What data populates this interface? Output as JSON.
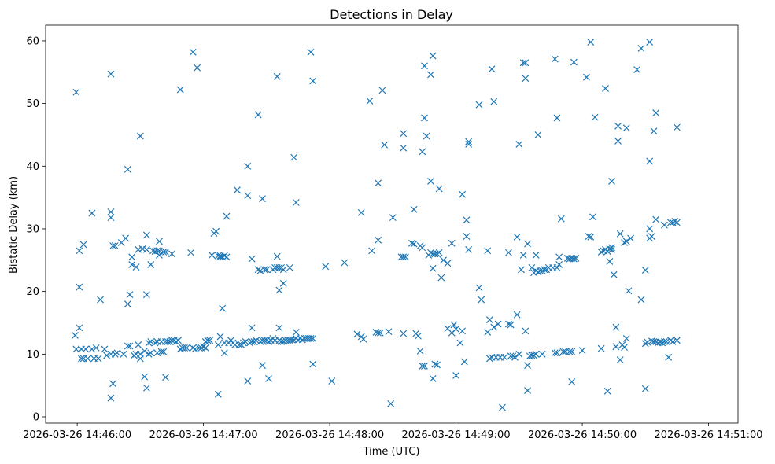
{
  "chart_data": {
    "type": "scatter",
    "title": "Detections in Delay",
    "xlabel": "Time (UTC)",
    "ylabel": "Bistatic Delay (km)",
    "x_ticks": [
      {
        "t": 0,
        "label": "2026-03-26 14:46:00"
      },
      {
        "t": 60,
        "label": "2026-03-26 14:47:00"
      },
      {
        "t": 120,
        "label": "2026-03-26 14:48:00"
      },
      {
        "t": 180,
        "label": "2026-03-26 14:49:00"
      },
      {
        "t": 240,
        "label": "2026-03-26 14:50:00"
      },
      {
        "t": 300,
        "label": "2026-03-26 14:51:00"
      }
    ],
    "y_ticks": [
      0,
      10,
      20,
      30,
      40,
      50,
      60
    ],
    "xlim": [
      -15,
      314
    ],
    "ylim": [
      -1,
      62.5
    ],
    "marker": "x",
    "color": "#1f77b4",
    "points": [
      [
        -0.5,
        51.8
      ],
      [
        -1,
        13
      ],
      [
        -0.5,
        10.8
      ],
      [
        1,
        14.2
      ],
      [
        1,
        26.5
      ],
      [
        1,
        20.7
      ],
      [
        3,
        27.5
      ],
      [
        2,
        10.8
      ],
      [
        2,
        9.3
      ],
      [
        3,
        9.3
      ],
      [
        4,
        10.8
      ],
      [
        5,
        9.3
      ],
      [
        7,
        32.5
      ],
      [
        7,
        10.8
      ],
      [
        8,
        9.3
      ],
      [
        9,
        11
      ],
      [
        10,
        9.3
      ],
      [
        11,
        18.7
      ],
      [
        13,
        10.8
      ],
      [
        14,
        9.8
      ],
      [
        16,
        54.7
      ],
      [
        16,
        32.7
      ],
      [
        16,
        31.8
      ],
      [
        16,
        10
      ],
      [
        17,
        27.3
      ],
      [
        17,
        5.3
      ],
      [
        16,
        3
      ],
      [
        18,
        27.3
      ],
      [
        18,
        10
      ],
      [
        19,
        10.2
      ],
      [
        21,
        27.8
      ],
      [
        22,
        10
      ],
      [
        23,
        28.5
      ],
      [
        24,
        11.3
      ],
      [
        24,
        18
      ],
      [
        24,
        39.5
      ],
      [
        25,
        11.3
      ],
      [
        25,
        19.5
      ],
      [
        26,
        25.5
      ],
      [
        26,
        24.3
      ],
      [
        27,
        9.8
      ],
      [
        28,
        10
      ],
      [
        28,
        23.9
      ],
      [
        29,
        26.7
      ],
      [
        29,
        11.5
      ],
      [
        30,
        10
      ],
      [
        30,
        9.3
      ],
      [
        30,
        44.8
      ],
      [
        31,
        26.8
      ],
      [
        32,
        10.5
      ],
      [
        32,
        6.4
      ],
      [
        33,
        4.6
      ],
      [
        33,
        29
      ],
      [
        33,
        19.5
      ],
      [
        33,
        26.7
      ],
      [
        34,
        10
      ],
      [
        34,
        11.8
      ],
      [
        35,
        12
      ],
      [
        35,
        24.3
      ],
      [
        35,
        10.2
      ],
      [
        36,
        26.5
      ],
      [
        37,
        26.4
      ],
      [
        37,
        11.8
      ],
      [
        38,
        12
      ],
      [
        38,
        10.2
      ],
      [
        38,
        26.5
      ],
      [
        39,
        25.8
      ],
      [
        39,
        28
      ],
      [
        39,
        26.5
      ],
      [
        40,
        12
      ],
      [
        40,
        10.4
      ],
      [
        41,
        26.3
      ],
      [
        41,
        10.4
      ],
      [
        42,
        12
      ],
      [
        42,
        6.3
      ],
      [
        42,
        26.3
      ],
      [
        43,
        12
      ],
      [
        44,
        12
      ],
      [
        45,
        12.2
      ],
      [
        45,
        26
      ],
      [
        46,
        12.2
      ],
      [
        47,
        12
      ],
      [
        48,
        12.2
      ],
      [
        49,
        52.2
      ],
      [
        49,
        10.8
      ],
      [
        50,
        11
      ],
      [
        51,
        11
      ],
      [
        52,
        11
      ],
      [
        54,
        26.2
      ],
      [
        55,
        58.2
      ],
      [
        55,
        11
      ],
      [
        56,
        10.8
      ],
      [
        57,
        55.7
      ],
      [
        58,
        11
      ],
      [
        59,
        11
      ],
      [
        60,
        11.2
      ],
      [
        61,
        11
      ],
      [
        61,
        12
      ],
      [
        62,
        12.2
      ],
      [
        63,
        12.2
      ],
      [
        64,
        25.8
      ],
      [
        65,
        29.3
      ],
      [
        66,
        29.6
      ],
      [
        67,
        11.5
      ],
      [
        67,
        25.7
      ],
      [
        67,
        3.6
      ],
      [
        68,
        25.5
      ],
      [
        68,
        25.7
      ],
      [
        68,
        12.8
      ],
      [
        69,
        25.5
      ],
      [
        69,
        17.3
      ],
      [
        70,
        10.2
      ],
      [
        70,
        11.8
      ],
      [
        70,
        25.7
      ],
      [
        71,
        25.5
      ],
      [
        71,
        32
      ],
      [
        72,
        11.8
      ],
      [
        73,
        12.2
      ],
      [
        74,
        11.8
      ],
      [
        75,
        11.5
      ],
      [
        76,
        36.2
      ],
      [
        77,
        11.5
      ],
      [
        78,
        11.5
      ],
      [
        79,
        11.8
      ],
      [
        80,
        12
      ],
      [
        81,
        5.7
      ],
      [
        81,
        40
      ],
      [
        81,
        35.3
      ],
      [
        82,
        11.8
      ],
      [
        83,
        25.2
      ],
      [
        83,
        14.2
      ],
      [
        83,
        12
      ],
      [
        84,
        12
      ],
      [
        85,
        12.2
      ],
      [
        86,
        48.2
      ],
      [
        86,
        23.5
      ],
      [
        87,
        12
      ],
      [
        87,
        23.3
      ],
      [
        88,
        8.2
      ],
      [
        88,
        12.2
      ],
      [
        88,
        34.8
      ],
      [
        89,
        23.5
      ],
      [
        89,
        12.2
      ],
      [
        90,
        23.5
      ],
      [
        90,
        12.2
      ],
      [
        91,
        12
      ],
      [
        91,
        6.1
      ],
      [
        92,
        12.2
      ],
      [
        93,
        12.5
      ],
      [
        93,
        23.5
      ],
      [
        94,
        23.8
      ],
      [
        94,
        12.2
      ],
      [
        95,
        23.8
      ],
      [
        95,
        54.3
      ],
      [
        95,
        25.6
      ],
      [
        96,
        14.2
      ],
      [
        96,
        20.2
      ],
      [
        96,
        12.2
      ],
      [
        96,
        23.8
      ],
      [
        97,
        23.8
      ],
      [
        97,
        12
      ],
      [
        98,
        23.5
      ],
      [
        98,
        21.3
      ],
      [
        98,
        12
      ],
      [
        99,
        12.2
      ],
      [
        100,
        12.2
      ],
      [
        101,
        12.2
      ],
      [
        101,
        23.8
      ],
      [
        102,
        12.3
      ],
      [
        103,
        41.4
      ],
      [
        103,
        12.3
      ],
      [
        104,
        34.2
      ],
      [
        104,
        12.5
      ],
      [
        104,
        13.5
      ],
      [
        105,
        12.3
      ],
      [
        106,
        12.5
      ],
      [
        107,
        12.3
      ],
      [
        108,
        12.5
      ],
      [
        109,
        12.5
      ],
      [
        110,
        12.5
      ],
      [
        111,
        58.2
      ],
      [
        111,
        12.5
      ],
      [
        112,
        53.6
      ],
      [
        112,
        8.4
      ],
      [
        112,
        12.5
      ],
      [
        118,
        24
      ],
      [
        121,
        5.7
      ],
      [
        127,
        24.6
      ],
      [
        133,
        13.2
      ],
      [
        135,
        32.6
      ],
      [
        135,
        12.8
      ],
      [
        136,
        12.4
      ],
      [
        139,
        50.4
      ],
      [
        140,
        26.5
      ],
      [
        142,
        13.5
      ],
      [
        143,
        37.3
      ],
      [
        143,
        28.2
      ],
      [
        143,
        13.4
      ],
      [
        144,
        13.4
      ],
      [
        145,
        52.1
      ],
      [
        146,
        43.4
      ],
      [
        148,
        13.6
      ],
      [
        149,
        2.1
      ],
      [
        150,
        31.8
      ],
      [
        154,
        25.5
      ],
      [
        155,
        25.5
      ],
      [
        155,
        45.2
      ],
      [
        155,
        42.9
      ],
      [
        155,
        13.3
      ],
      [
        156,
        25.5
      ],
      [
        159,
        27.7
      ],
      [
        160,
        33.1
      ],
      [
        160,
        27.6
      ],
      [
        161,
        13.3
      ],
      [
        162,
        12.9
      ],
      [
        163,
        10.5
      ],
      [
        163,
        27.3
      ],
      [
        164,
        42.3
      ],
      [
        164,
        27
      ],
      [
        164,
        8.1
      ],
      [
        165,
        56
      ],
      [
        165,
        47.7
      ],
      [
        165,
        8.1
      ],
      [
        166,
        44.8
      ],
      [
        167,
        25.8
      ],
      [
        168,
        54.6
      ],
      [
        168,
        37.6
      ],
      [
        168,
        26.2
      ],
      [
        169,
        57.6
      ],
      [
        169,
        26
      ],
      [
        169,
        23.7
      ],
      [
        169,
        6.1
      ],
      [
        170,
        8.4
      ],
      [
        170,
        26
      ],
      [
        171,
        26
      ],
      [
        171,
        8.3
      ],
      [
        172,
        36.4
      ],
      [
        172,
        26.2
      ],
      [
        173,
        22.2
      ],
      [
        174,
        25
      ],
      [
        176,
        24.5
      ],
      [
        176,
        14.1
      ],
      [
        178,
        27.7
      ],
      [
        178,
        13.4
      ],
      [
        179,
        14.7
      ],
      [
        180,
        14
      ],
      [
        180,
        6.6
      ],
      [
        182,
        11.8
      ],
      [
        183,
        35.5
      ],
      [
        183,
        13.7
      ],
      [
        184,
        8.8
      ],
      [
        185,
        31.4
      ],
      [
        185,
        28.8
      ],
      [
        186,
        43.9
      ],
      [
        186,
        43.5
      ],
      [
        186,
        26.7
      ],
      [
        191,
        49.8
      ],
      [
        191,
        20.6
      ],
      [
        192,
        18.7
      ],
      [
        195,
        26.5
      ],
      [
        195,
        13.5
      ],
      [
        196,
        9.3
      ],
      [
        196,
        15.5
      ],
      [
        197,
        55.5
      ],
      [
        197,
        9.5
      ],
      [
        198,
        50.3
      ],
      [
        198,
        14.3
      ],
      [
        199,
        9.5
      ],
      [
        200,
        14.8
      ],
      [
        201,
        9.5
      ],
      [
        202,
        1.5
      ],
      [
        203,
        9.5
      ],
      [
        205,
        14.8
      ],
      [
        205,
        26.2
      ],
      [
        206,
        14.7
      ],
      [
        206,
        9.7
      ],
      [
        207,
        9.7
      ],
      [
        208,
        9.5
      ],
      [
        209,
        28.7
      ],
      [
        209,
        16.3
      ],
      [
        210,
        43.5
      ],
      [
        210,
        10
      ],
      [
        211,
        23.5
      ],
      [
        212,
        56.5
      ],
      [
        212,
        25.8
      ],
      [
        213,
        56.5
      ],
      [
        213,
        54
      ],
      [
        213,
        13.7
      ],
      [
        214,
        27.6
      ],
      [
        214,
        8.2
      ],
      [
        214,
        4.2
      ],
      [
        215,
        9.7
      ],
      [
        216,
        23.8
      ],
      [
        216,
        9.8
      ],
      [
        217,
        23
      ],
      [
        217,
        9.8
      ],
      [
        218,
        23.3
      ],
      [
        218,
        25.8
      ],
      [
        218,
        10
      ],
      [
        219,
        45
      ],
      [
        219,
        23.1
      ],
      [
        220,
        23.3
      ],
      [
        221,
        23.3
      ],
      [
        221,
        10
      ],
      [
        222,
        23.5
      ],
      [
        223,
        23.5
      ],
      [
        224,
        23.8
      ],
      [
        226,
        23.8
      ],
      [
        227,
        57.1
      ],
      [
        227,
        10.2
      ],
      [
        228,
        47.7
      ],
      [
        228,
        23.8
      ],
      [
        228,
        10.2
      ],
      [
        229,
        25.5
      ],
      [
        229,
        24.3
      ],
      [
        230,
        31.6
      ],
      [
        231,
        10.4
      ],
      [
        232,
        10.4
      ],
      [
        233,
        25.3
      ],
      [
        234,
        25.2
      ],
      [
        234,
        10.4
      ],
      [
        235,
        25.3
      ],
      [
        235,
        5.6
      ],
      [
        235,
        10.4
      ],
      [
        236,
        56.6
      ],
      [
        236,
        25.2
      ],
      [
        237,
        25.3
      ],
      [
        240,
        10.6
      ],
      [
        242,
        54.2
      ],
      [
        243,
        28.8
      ],
      [
        244,
        28.7
      ],
      [
        244,
        59.8
      ],
      [
        245,
        31.9
      ],
      [
        246,
        47.8
      ],
      [
        249,
        26.3
      ],
      [
        249,
        10.9
      ],
      [
        250,
        26.5
      ],
      [
        251,
        26.7
      ],
      [
        251,
        52.4
      ],
      [
        252,
        4.1
      ],
      [
        252,
        26.4
      ],
      [
        253,
        26.8
      ],
      [
        253,
        24.8
      ],
      [
        254,
        26.7
      ],
      [
        254,
        37.6
      ],
      [
        254,
        27
      ],
      [
        255,
        22.7
      ],
      [
        256,
        14.3
      ],
      [
        256,
        11.2
      ],
      [
        257,
        46.4
      ],
      [
        257,
        44
      ],
      [
        258,
        29.2
      ],
      [
        258,
        9.1
      ],
      [
        259,
        11.5
      ],
      [
        260,
        27.8
      ],
      [
        260,
        11.1
      ],
      [
        261,
        12.5
      ],
      [
        261,
        46.1
      ],
      [
        261,
        28
      ],
      [
        262,
        20.1
      ],
      [
        263,
        28.5
      ],
      [
        266,
        55.4
      ],
      [
        268,
        58.8
      ],
      [
        268,
        18.7
      ],
      [
        270,
        23.4
      ],
      [
        270,
        11.7
      ],
      [
        270,
        4.5
      ],
      [
        271,
        11.9
      ],
      [
        272,
        59.8
      ],
      [
        272,
        40.8
      ],
      [
        272,
        30
      ],
      [
        272,
        28.5
      ],
      [
        273,
        28.8
      ],
      [
        273,
        12.1
      ],
      [
        274,
        12
      ],
      [
        274,
        45.6
      ],
      [
        275,
        48.5
      ],
      [
        275,
        31.5
      ],
      [
        275,
        12
      ],
      [
        276,
        11.8
      ],
      [
        277,
        11.9
      ],
      [
        278,
        11.8
      ],
      [
        279,
        30.6
      ],
      [
        279,
        12
      ],
      [
        280,
        12
      ],
      [
        281,
        9.5
      ],
      [
        282,
        31
      ],
      [
        282,
        12.2
      ],
      [
        283,
        31
      ],
      [
        283,
        12
      ],
      [
        284,
        31.2
      ],
      [
        285,
        46.2
      ],
      [
        285,
        31
      ],
      [
        285,
        12.2
      ]
    ]
  }
}
